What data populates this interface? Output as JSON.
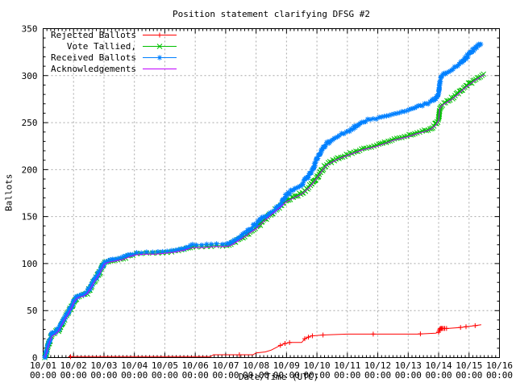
{
  "title": "Position statement clarifying DFSG #2",
  "axes": {
    "y_label": "Ballots",
    "x_label": "Date/Time (UTC)",
    "y_ticks": [
      "0",
      "50",
      "100",
      "150",
      "200",
      "250",
      "300",
      "350"
    ],
    "x_ticks": [
      "10/01",
      "10/02",
      "10/03",
      "10/04",
      "10/05",
      "10/06",
      "10/07",
      "10/08",
      "10/09",
      "10/10",
      "10/11",
      "10/12",
      "10/13",
      "10/14",
      "10/15",
      "10/16"
    ],
    "x_tick_time": "00:00"
  },
  "legend": [
    {
      "label": "Rejected Ballots",
      "color": "#ff0000",
      "marker": "plus"
    },
    {
      "label": "Vote Tallied,",
      "color": "#00c000",
      "marker": "cross"
    },
    {
      "label": "Received Ballots",
      "color": "#0080ff",
      "marker": "star"
    },
    {
      "label": "Acknowledgements",
      "color": "#c000ff",
      "marker": "none"
    }
  ],
  "chart_data": {
    "type": "line",
    "title": "Position statement clarifying DFSG #2",
    "xlabel": "Date/Time (UTC)",
    "ylabel": "Ballots",
    "x_unit": "days since 10/01 00:00 UTC",
    "xlim": [
      0,
      15
    ],
    "ylim": [
      0,
      350
    ],
    "x_major_tick_days": 1,
    "x_minor_tick_days": 0.125,
    "y_major_tick": 50,
    "y_minor_tick": 10,
    "grid": true,
    "legend_position": "top-left",
    "series": [
      {
        "name": "Rejected Ballots",
        "color": "#ff0000",
        "marker": "plus",
        "dense_markers": false,
        "points": [
          [
            0.85,
            1
          ],
          [
            2.0,
            1
          ],
          [
            4.0,
            1
          ],
          [
            5.5,
            1
          ],
          [
            5.6,
            3
          ],
          [
            6.9,
            3
          ],
          [
            7.0,
            5
          ],
          [
            7.3,
            6
          ],
          [
            7.5,
            8
          ],
          [
            7.8,
            13
          ],
          [
            7.95,
            15
          ],
          [
            8.1,
            16
          ],
          [
            8.5,
            16
          ],
          [
            8.6,
            20
          ],
          [
            8.8,
            23
          ],
          [
            9.2,
            24
          ],
          [
            10.0,
            25
          ],
          [
            11.5,
            25
          ],
          [
            12.3,
            25
          ],
          [
            12.9,
            26
          ],
          [
            13.0,
            27
          ],
          [
            13.05,
            31
          ],
          [
            13.3,
            31
          ],
          [
            13.7,
            32
          ],
          [
            13.95,
            33
          ],
          [
            14.2,
            34
          ],
          [
            14.4,
            35
          ]
        ],
        "marker_days": [
          0.9,
          6.45,
          7.8,
          7.95,
          8.1,
          8.6,
          8.72,
          8.85,
          9.2,
          10.85,
          12.4,
          13.0,
          13.02,
          13.04,
          13.06,
          13.09,
          13.12,
          13.16,
          13.2,
          13.26,
          13.72,
          13.9,
          14.2
        ]
      },
      {
        "name": "Vote Tallied,",
        "color": "#00c000",
        "marker": "cross",
        "dense_markers": true,
        "points": [
          [
            0.05,
            0
          ],
          [
            0.08,
            3
          ],
          [
            0.12,
            7
          ],
          [
            0.16,
            12
          ],
          [
            0.2,
            16
          ],
          [
            0.25,
            21
          ],
          [
            0.3,
            24
          ],
          [
            0.4,
            26
          ],
          [
            0.5,
            29
          ],
          [
            0.6,
            35
          ],
          [
            0.7,
            41
          ],
          [
            0.8,
            46
          ],
          [
            0.9,
            52
          ],
          [
            1.0,
            59
          ],
          [
            1.05,
            62
          ],
          [
            1.15,
            65
          ],
          [
            1.3,
            66
          ],
          [
            1.45,
            69
          ],
          [
            1.55,
            74
          ],
          [
            1.65,
            80
          ],
          [
            1.75,
            85
          ],
          [
            1.85,
            90
          ],
          [
            1.95,
            96
          ],
          [
            2.0,
            100
          ],
          [
            2.1,
            102
          ],
          [
            2.25,
            103
          ],
          [
            2.4,
            104
          ],
          [
            2.6,
            105
          ],
          [
            2.75,
            107
          ],
          [
            2.9,
            109
          ],
          [
            3.0,
            110
          ],
          [
            3.3,
            111
          ],
          [
            3.7,
            111
          ],
          [
            4.0,
            112
          ],
          [
            4.3,
            113
          ],
          [
            4.6,
            115
          ],
          [
            4.8,
            117
          ],
          [
            4.95,
            118
          ],
          [
            5.3,
            118
          ],
          [
            5.6,
            119
          ],
          [
            6.0,
            119
          ],
          [
            6.15,
            120
          ],
          [
            6.3,
            123
          ],
          [
            6.5,
            127
          ],
          [
            6.7,
            131
          ],
          [
            6.85,
            135
          ],
          [
            7.0,
            138
          ],
          [
            7.25,
            146
          ],
          [
            7.5,
            153
          ],
          [
            7.75,
            160
          ],
          [
            8.0,
            167
          ],
          [
            8.25,
            171
          ],
          [
            8.5,
            175
          ],
          [
            8.75,
            182
          ],
          [
            9.0,
            192
          ],
          [
            9.15,
            199
          ],
          [
            9.3,
            205
          ],
          [
            9.5,
            209
          ],
          [
            9.75,
            213
          ],
          [
            10.0,
            216
          ],
          [
            10.25,
            219
          ],
          [
            10.5,
            222
          ],
          [
            10.75,
            224
          ],
          [
            11.0,
            226
          ],
          [
            11.25,
            229
          ],
          [
            11.5,
            232
          ],
          [
            11.75,
            234
          ],
          [
            12.0,
            236
          ],
          [
            12.25,
            239
          ],
          [
            12.5,
            241
          ],
          [
            12.75,
            244
          ],
          [
            12.9,
            248
          ],
          [
            13.0,
            253
          ],
          [
            13.04,
            266
          ],
          [
            13.1,
            269
          ],
          [
            13.25,
            272
          ],
          [
            13.4,
            275
          ],
          [
            13.6,
            280
          ],
          [
            13.8,
            286
          ],
          [
            14.0,
            291
          ],
          [
            14.15,
            295
          ],
          [
            14.3,
            298
          ],
          [
            14.5,
            302
          ]
        ]
      },
      {
        "name": "Received Ballots",
        "color": "#0080ff",
        "marker": "star",
        "dense_markers": true,
        "points": [
          [
            0.05,
            0
          ],
          [
            0.08,
            3
          ],
          [
            0.12,
            8
          ],
          [
            0.16,
            13
          ],
          [
            0.2,
            17
          ],
          [
            0.25,
            22
          ],
          [
            0.3,
            25
          ],
          [
            0.4,
            27
          ],
          [
            0.5,
            30
          ],
          [
            0.6,
            36
          ],
          [
            0.7,
            42
          ],
          [
            0.8,
            47
          ],
          [
            0.9,
            53
          ],
          [
            1.0,
            60
          ],
          [
            1.05,
            63
          ],
          [
            1.15,
            66
          ],
          [
            1.3,
            67
          ],
          [
            1.45,
            70
          ],
          [
            1.55,
            75
          ],
          [
            1.65,
            81
          ],
          [
            1.75,
            86
          ],
          [
            1.85,
            91
          ],
          [
            1.95,
            97
          ],
          [
            2.0,
            101
          ],
          [
            2.1,
            103
          ],
          [
            2.25,
            104
          ],
          [
            2.4,
            105
          ],
          [
            2.6,
            106
          ],
          [
            2.75,
            108
          ],
          [
            2.9,
            110
          ],
          [
            3.0,
            111
          ],
          [
            3.3,
            112
          ],
          [
            3.7,
            112
          ],
          [
            4.0,
            113
          ],
          [
            4.3,
            114
          ],
          [
            4.6,
            116
          ],
          [
            4.8,
            118
          ],
          [
            4.95,
            120
          ],
          [
            5.3,
            120
          ],
          [
            5.6,
            121
          ],
          [
            6.0,
            121
          ],
          [
            6.15,
            122
          ],
          [
            6.3,
            125
          ],
          [
            6.5,
            129
          ],
          [
            6.7,
            134
          ],
          [
            6.85,
            138
          ],
          [
            7.0,
            142
          ],
          [
            7.2,
            148
          ],
          [
            7.4,
            152
          ],
          [
            7.6,
            156
          ],
          [
            7.8,
            164
          ],
          [
            8.0,
            173
          ],
          [
            8.2,
            178
          ],
          [
            8.35,
            181
          ],
          [
            8.5,
            184
          ],
          [
            8.7,
            192
          ],
          [
            8.85,
            200
          ],
          [
            9.0,
            211
          ],
          [
            9.15,
            220
          ],
          [
            9.3,
            227
          ],
          [
            9.5,
            232
          ],
          [
            9.7,
            236
          ],
          [
            9.85,
            238
          ],
          [
            10.0,
            240
          ],
          [
            10.2,
            244
          ],
          [
            10.35,
            248
          ],
          [
            10.5,
            251
          ],
          [
            10.7,
            253
          ],
          [
            10.9,
            254
          ],
          [
            11.0,
            255
          ],
          [
            11.25,
            257
          ],
          [
            11.5,
            259
          ],
          [
            11.75,
            261
          ],
          [
            12.0,
            263
          ],
          [
            12.25,
            266
          ],
          [
            12.5,
            269
          ],
          [
            12.75,
            272
          ],
          [
            12.9,
            276
          ],
          [
            13.0,
            281
          ],
          [
            13.04,
            293
          ],
          [
            13.1,
            299
          ],
          [
            13.2,
            302
          ],
          [
            13.35,
            305
          ],
          [
            13.5,
            308
          ],
          [
            13.7,
            312
          ],
          [
            13.85,
            317
          ],
          [
            14.0,
            323
          ],
          [
            14.1,
            326
          ],
          [
            14.2,
            329
          ],
          [
            14.3,
            332
          ],
          [
            14.4,
            335
          ]
        ]
      },
      {
        "name": "Acknowledgements",
        "color": "#c000ff",
        "marker": "none",
        "dense_markers": false,
        "points": [
          [
            0.05,
            0
          ],
          [
            0.08,
            2
          ],
          [
            0.12,
            6
          ],
          [
            0.16,
            11
          ],
          [
            0.2,
            15
          ],
          [
            0.25,
            20
          ],
          [
            0.3,
            23
          ],
          [
            0.4,
            25
          ],
          [
            0.5,
            28
          ],
          [
            0.6,
            34
          ],
          [
            0.7,
            40
          ],
          [
            0.8,
            45
          ],
          [
            0.9,
            51
          ],
          [
            1.0,
            58
          ],
          [
            1.05,
            61
          ],
          [
            1.15,
            64
          ],
          [
            1.3,
            65
          ],
          [
            1.45,
            68
          ],
          [
            1.55,
            73
          ],
          [
            1.65,
            79
          ],
          [
            1.75,
            84
          ],
          [
            1.85,
            89
          ],
          [
            1.95,
            95
          ],
          [
            2.0,
            99
          ],
          [
            2.1,
            101
          ],
          [
            2.25,
            102
          ],
          [
            2.4,
            103
          ],
          [
            2.6,
            104
          ],
          [
            2.75,
            106
          ],
          [
            2.9,
            108
          ],
          [
            3.0,
            109
          ],
          [
            3.3,
            110
          ],
          [
            3.7,
            110
          ],
          [
            4.0,
            111
          ],
          [
            4.3,
            112
          ],
          [
            4.6,
            114
          ],
          [
            4.8,
            116
          ],
          [
            4.95,
            117
          ],
          [
            5.3,
            117
          ],
          [
            5.6,
            118
          ],
          [
            6.0,
            118
          ],
          [
            6.15,
            119
          ],
          [
            6.3,
            122
          ],
          [
            6.5,
            126
          ],
          [
            6.7,
            130
          ],
          [
            6.85,
            134
          ],
          [
            7.0,
            137
          ],
          [
            7.25,
            145
          ],
          [
            7.5,
            152
          ],
          [
            7.75,
            159
          ],
          [
            8.0,
            166
          ],
          [
            8.25,
            170
          ],
          [
            8.5,
            174
          ],
          [
            8.75,
            181
          ],
          [
            9.0,
            191
          ],
          [
            9.15,
            198
          ],
          [
            9.3,
            204
          ],
          [
            9.5,
            208
          ],
          [
            9.75,
            212
          ],
          [
            10.0,
            215
          ],
          [
            10.25,
            218
          ],
          [
            10.5,
            221
          ],
          [
            10.75,
            223
          ],
          [
            11.0,
            225
          ],
          [
            11.25,
            228
          ],
          [
            11.5,
            231
          ],
          [
            11.75,
            233
          ],
          [
            12.0,
            235
          ],
          [
            12.25,
            238
          ],
          [
            12.5,
            240
          ],
          [
            12.75,
            243
          ],
          [
            12.9,
            247
          ],
          [
            13.0,
            252
          ],
          [
            13.04,
            265
          ],
          [
            13.1,
            268
          ],
          [
            13.25,
            271
          ],
          [
            13.4,
            274
          ],
          [
            13.6,
            279
          ],
          [
            13.8,
            285
          ],
          [
            14.0,
            290
          ],
          [
            14.15,
            294
          ],
          [
            14.3,
            297
          ],
          [
            14.5,
            301
          ]
        ]
      }
    ]
  }
}
